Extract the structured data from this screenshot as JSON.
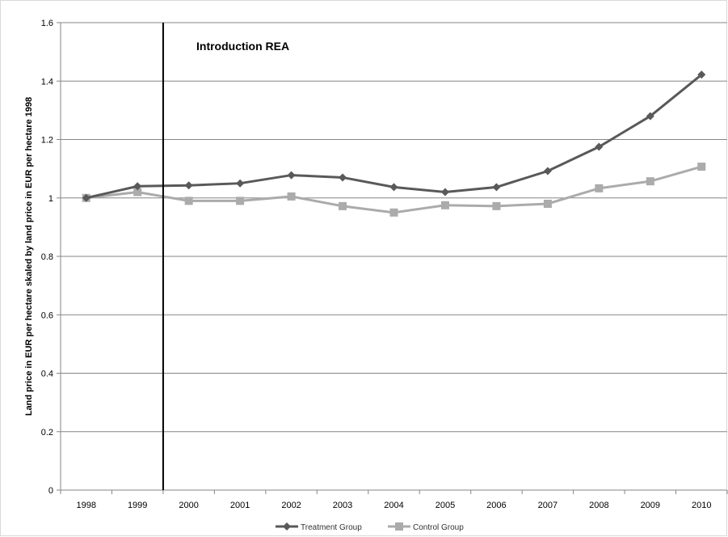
{
  "chart_data": {
    "type": "line",
    "title": "",
    "xlabel": "",
    "ylabel": "Land price in EUR per hectare skaled by land price in EUR per hectare 1998",
    "categories": [
      "1998",
      "1999",
      "2000",
      "2001",
      "2002",
      "2003",
      "2004",
      "2005",
      "2006",
      "2007",
      "2008",
      "2009",
      "2010"
    ],
    "ylim": [
      0,
      1.6
    ],
    "yticks": [
      0,
      0.2,
      0.4,
      0.6,
      0.8,
      1,
      1.2,
      1.4,
      1.6
    ],
    "ytick_labels": [
      "0",
      "0.2",
      "0.4",
      "0.6",
      "0.8",
      "1",
      "1.2",
      "1.4",
      "1.6"
    ],
    "grid": "horizontal",
    "legend_position": "bottom",
    "series": [
      {
        "name": "Treatment Group",
        "marker": "diamond",
        "color": "#595959",
        "values": [
          1.0,
          1.04,
          1.043,
          1.05,
          1.078,
          1.07,
          1.037,
          1.02,
          1.037,
          1.092,
          1.175,
          1.28,
          1.422
        ]
      },
      {
        "name": "Control Group",
        "marker": "square",
        "color": "#ababab",
        "values": [
          1.0,
          1.02,
          0.99,
          0.99,
          1.005,
          0.972,
          0.95,
          0.975,
          0.972,
          0.98,
          1.033,
          1.057,
          1.107
        ]
      }
    ],
    "annotation": {
      "text": "Introduction REA",
      "vline_between": [
        "1999",
        "2000"
      ]
    }
  }
}
